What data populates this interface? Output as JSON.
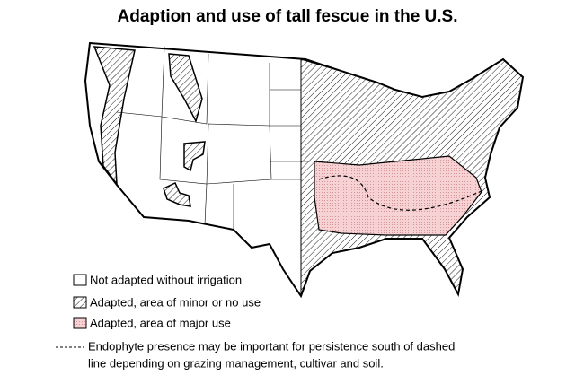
{
  "title": "Adaption and use of tall fescue in the U.S.",
  "legend": {
    "items": [
      {
        "label": "Not adapted without irrigation"
      },
      {
        "label": "Adapted, area of minor or no use"
      },
      {
        "label": "Adapted, area of major use"
      }
    ],
    "note": {
      "lines": [
        "Endophyte presence may be important for persistence south of dashed",
        "line depending on grazing management, cultivar and soil."
      ]
    }
  }
}
